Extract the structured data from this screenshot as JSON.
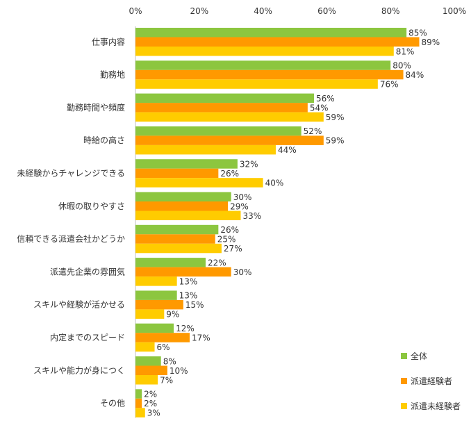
{
  "chart_data": {
    "type": "bar",
    "orientation": "horizontal",
    "title": "",
    "xlabel": "",
    "ylabel": "",
    "xlim": [
      0,
      100
    ],
    "x_ticks": [
      0,
      20,
      40,
      60,
      80,
      100
    ],
    "tick_suffix": "%",
    "grid": false,
    "legend_position": "bottom-right",
    "categories": [
      "仕事内容",
      "勤務地",
      "勤務時間や頻度",
      "時給の高さ",
      "未経験からチャレンジできる",
      "休暇の取りやすさ",
      "信頼できる派遣会社かどうか",
      "派遣先企業の雰囲気",
      "スキルや経験が活かせる",
      "内定までのスピード",
      "スキルや能力が身につく",
      "その他"
    ],
    "series": [
      {
        "name": "全体",
        "color": "#8cc63f",
        "values": [
          85,
          80,
          56,
          52,
          32,
          30,
          26,
          22,
          13,
          12,
          8,
          2
        ]
      },
      {
        "name": "派遣経験者",
        "color": "#ff9900",
        "values": [
          89,
          84,
          54,
          59,
          26,
          29,
          25,
          30,
          15,
          17,
          10,
          2
        ]
      },
      {
        "name": "派遣未経験者",
        "color": "#ffcc00",
        "values": [
          81,
          76,
          59,
          44,
          40,
          33,
          27,
          13,
          9,
          6,
          7,
          3
        ]
      }
    ]
  }
}
